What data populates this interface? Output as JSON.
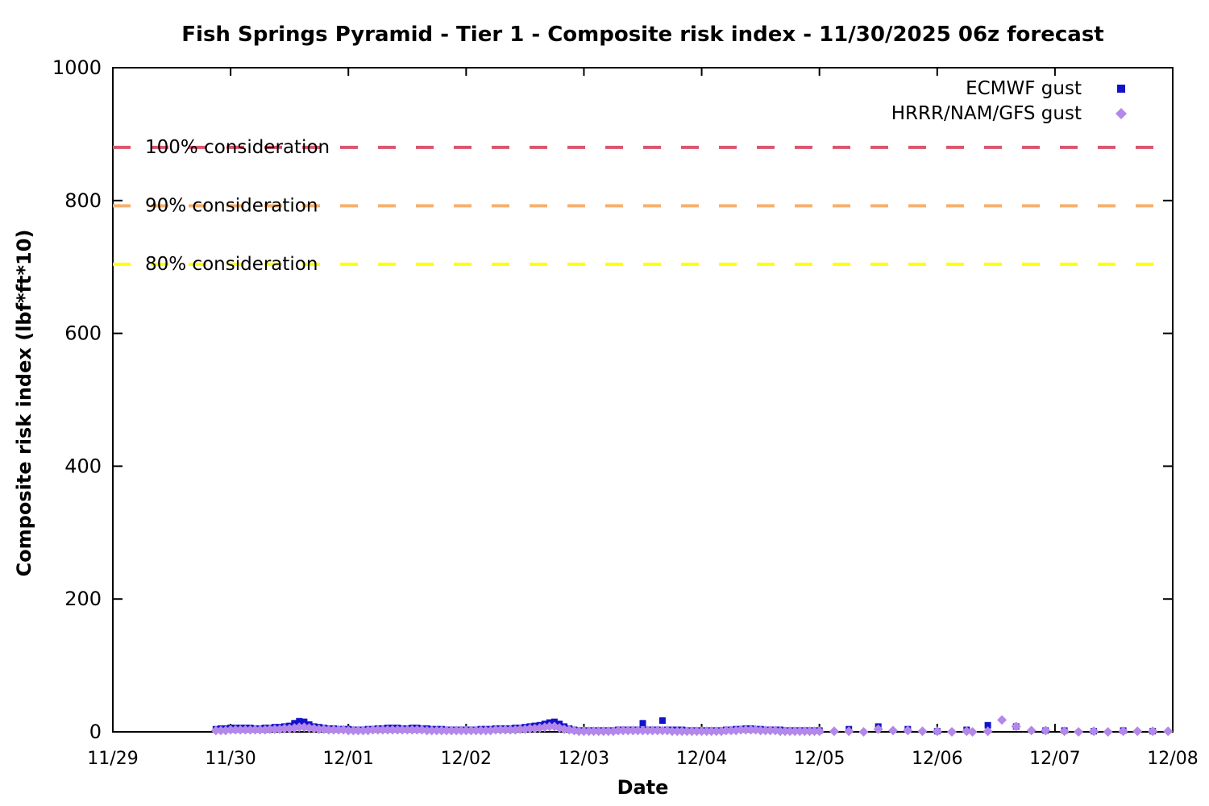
{
  "title": "Fish Springs Pyramid - Tier 1 - Composite risk index - 11/30/2025 06z forecast",
  "chart_data": {
    "type": "scatter",
    "title": "Fish Springs Pyramid - Tier 1 - Composite risk index - 11/30/2025 06z forecast",
    "xlabel": "Date",
    "ylabel": "Composite risk index (lbf*ft*10)",
    "ylim": [
      0,
      1000
    ],
    "yticks": [
      0,
      200,
      400,
      600,
      800,
      1000
    ],
    "x_tick_labels": [
      "11/29",
      "11/30",
      "12/01",
      "12/02",
      "12/03",
      "12/04",
      "12/05",
      "12/06",
      "12/07",
      "12/08"
    ],
    "x_range_days": [
      0,
      9
    ],
    "x_units": "days since 11/29 00z",
    "grid": false,
    "legend_position": "top-right-inside",
    "background": "#ffffff",
    "thresholds": [
      {
        "label": "100% consideration",
        "value": 880,
        "color": "#d9566e",
        "style": "dashed"
      },
      {
        "label": "90% consideration",
        "value": 792,
        "color": "#f7b06e",
        "style": "dashed"
      },
      {
        "label": "80% consideration",
        "value": 704,
        "color": "#ffff00",
        "style": "dashed"
      }
    ],
    "series": [
      {
        "name": "ECMWF gust",
        "marker": "square",
        "color": "#1212cc",
        "points": [
          [
            0.875,
            4
          ],
          [
            0.917,
            5
          ],
          [
            0.958,
            5
          ],
          [
            1.0,
            6
          ],
          [
            1.042,
            6
          ],
          [
            1.083,
            6
          ],
          [
            1.125,
            6
          ],
          [
            1.167,
            6
          ],
          [
            1.208,
            5
          ],
          [
            1.25,
            5
          ],
          [
            1.292,
            6
          ],
          [
            1.333,
            6
          ],
          [
            1.375,
            7
          ],
          [
            1.417,
            7
          ],
          [
            1.458,
            8
          ],
          [
            1.5,
            9
          ],
          [
            1.542,
            13
          ],
          [
            1.583,
            16
          ],
          [
            1.625,
            15
          ],
          [
            1.667,
            11
          ],
          [
            1.708,
            8
          ],
          [
            1.75,
            7
          ],
          [
            1.792,
            6
          ],
          [
            1.833,
            5
          ],
          [
            1.875,
            5
          ],
          [
            1.917,
            4
          ],
          [
            1.958,
            4
          ],
          [
            2.0,
            4
          ],
          [
            2.042,
            3
          ],
          [
            2.083,
            3
          ],
          [
            2.125,
            3
          ],
          [
            2.167,
            4
          ],
          [
            2.208,
            4
          ],
          [
            2.25,
            5
          ],
          [
            2.292,
            5
          ],
          [
            2.333,
            6
          ],
          [
            2.375,
            6
          ],
          [
            2.417,
            6
          ],
          [
            2.458,
            5
          ],
          [
            2.5,
            5
          ],
          [
            2.542,
            6
          ],
          [
            2.583,
            6
          ],
          [
            2.625,
            5
          ],
          [
            2.667,
            5
          ],
          [
            2.708,
            4
          ],
          [
            2.75,
            4
          ],
          [
            2.792,
            4
          ],
          [
            2.833,
            3
          ],
          [
            2.875,
            3
          ],
          [
            2.917,
            3
          ],
          [
            2.958,
            3
          ],
          [
            3.0,
            3
          ],
          [
            3.042,
            3
          ],
          [
            3.083,
            3
          ],
          [
            3.125,
            4
          ],
          [
            3.167,
            4
          ],
          [
            3.208,
            4
          ],
          [
            3.25,
            5
          ],
          [
            3.292,
            5
          ],
          [
            3.333,
            5
          ],
          [
            3.375,
            5
          ],
          [
            3.417,
            6
          ],
          [
            3.458,
            6
          ],
          [
            3.5,
            7
          ],
          [
            3.542,
            8
          ],
          [
            3.583,
            9
          ],
          [
            3.625,
            10
          ],
          [
            3.667,
            12
          ],
          [
            3.708,
            14
          ],
          [
            3.75,
            15
          ],
          [
            3.792,
            12
          ],
          [
            3.833,
            8
          ],
          [
            3.875,
            5
          ],
          [
            3.917,
            3
          ],
          [
            3.958,
            2
          ],
          [
            4.0,
            2
          ],
          [
            4.042,
            2
          ],
          [
            4.083,
            2
          ],
          [
            4.125,
            2
          ],
          [
            4.167,
            2
          ],
          [
            4.208,
            2
          ],
          [
            4.25,
            2
          ],
          [
            4.292,
            3
          ],
          [
            4.333,
            3
          ],
          [
            4.375,
            3
          ],
          [
            4.417,
            3
          ],
          [
            4.458,
            3
          ],
          [
            4.5,
            13
          ],
          [
            4.542,
            3
          ],
          [
            4.583,
            3
          ],
          [
            4.625,
            3
          ],
          [
            4.667,
            17
          ],
          [
            4.708,
            3
          ],
          [
            4.75,
            3
          ],
          [
            4.792,
            3
          ],
          [
            4.833,
            3
          ],
          [
            4.875,
            2
          ],
          [
            4.917,
            2
          ],
          [
            4.958,
            2
          ],
          [
            5.0,
            2
          ],
          [
            5.042,
            2
          ],
          [
            5.083,
            2
          ],
          [
            5.125,
            2
          ],
          [
            5.167,
            2
          ],
          [
            5.208,
            3
          ],
          [
            5.25,
            3
          ],
          [
            5.292,
            4
          ],
          [
            5.333,
            4
          ],
          [
            5.375,
            5
          ],
          [
            5.417,
            5
          ],
          [
            5.458,
            4
          ],
          [
            5.5,
            4
          ],
          [
            5.542,
            3
          ],
          [
            5.583,
            3
          ],
          [
            5.625,
            3
          ],
          [
            5.667,
            3
          ],
          [
            5.708,
            2
          ],
          [
            5.75,
            2
          ],
          [
            5.792,
            2
          ],
          [
            5.833,
            2
          ],
          [
            5.875,
            2
          ],
          [
            5.917,
            2
          ],
          [
            5.958,
            2
          ],
          [
            6.0,
            2
          ],
          [
            6.25,
            4
          ],
          [
            6.5,
            8
          ],
          [
            6.75,
            4
          ],
          [
            7.0,
            1
          ],
          [
            7.25,
            3
          ],
          [
            7.43,
            10
          ],
          [
            7.67,
            8
          ],
          [
            7.92,
            2
          ],
          [
            8.08,
            2
          ],
          [
            8.33,
            1
          ],
          [
            8.58,
            2
          ],
          [
            8.83,
            1
          ]
        ]
      },
      {
        "name": "HRRR/NAM/GFS gust",
        "marker": "diamond",
        "color": "#b388ea",
        "points": [
          [
            0.875,
            2
          ],
          [
            0.917,
            2
          ],
          [
            0.958,
            2
          ],
          [
            1.0,
            3
          ],
          [
            1.042,
            3
          ],
          [
            1.083,
            3
          ],
          [
            1.125,
            3
          ],
          [
            1.167,
            3
          ],
          [
            1.208,
            3
          ],
          [
            1.25,
            3
          ],
          [
            1.292,
            3
          ],
          [
            1.333,
            4
          ],
          [
            1.375,
            4
          ],
          [
            1.417,
            4
          ],
          [
            1.458,
            5
          ],
          [
            1.5,
            5
          ],
          [
            1.542,
            6
          ],
          [
            1.583,
            7
          ],
          [
            1.625,
            7
          ],
          [
            1.667,
            6
          ],
          [
            1.708,
            5
          ],
          [
            1.75,
            4
          ],
          [
            1.792,
            4
          ],
          [
            1.833,
            3
          ],
          [
            1.875,
            3
          ],
          [
            1.917,
            3
          ],
          [
            1.958,
            3
          ],
          [
            2.0,
            2
          ],
          [
            2.042,
            2
          ],
          [
            2.083,
            2
          ],
          [
            2.125,
            2
          ],
          [
            2.167,
            2
          ],
          [
            2.208,
            3
          ],
          [
            2.25,
            3
          ],
          [
            2.292,
            3
          ],
          [
            2.333,
            3
          ],
          [
            2.375,
            3
          ],
          [
            2.417,
            3
          ],
          [
            2.458,
            3
          ],
          [
            2.5,
            3
          ],
          [
            2.542,
            3
          ],
          [
            2.583,
            3
          ],
          [
            2.625,
            3
          ],
          [
            2.667,
            2
          ],
          [
            2.708,
            2
          ],
          [
            2.75,
            2
          ],
          [
            2.792,
            2
          ],
          [
            2.833,
            2
          ],
          [
            2.875,
            2
          ],
          [
            2.917,
            2
          ],
          [
            2.958,
            2
          ],
          [
            3.0,
            2
          ],
          [
            3.042,
            2
          ],
          [
            3.083,
            2
          ],
          [
            3.125,
            2
          ],
          [
            3.167,
            2
          ],
          [
            3.208,
            2
          ],
          [
            3.25,
            3
          ],
          [
            3.292,
            3
          ],
          [
            3.333,
            3
          ],
          [
            3.375,
            3
          ],
          [
            3.417,
            3
          ],
          [
            3.458,
            4
          ],
          [
            3.5,
            4
          ],
          [
            3.542,
            5
          ],
          [
            3.583,
            5
          ],
          [
            3.625,
            6
          ],
          [
            3.667,
            7
          ],
          [
            3.708,
            8
          ],
          [
            3.75,
            8
          ],
          [
            3.792,
            6
          ],
          [
            3.833,
            4
          ],
          [
            3.875,
            3
          ],
          [
            3.917,
            2
          ],
          [
            3.958,
            1
          ],
          [
            4.0,
            1
          ],
          [
            4.042,
            1
          ],
          [
            4.083,
            1
          ],
          [
            4.125,
            1
          ],
          [
            4.167,
            1
          ],
          [
            4.208,
            1
          ],
          [
            4.25,
            1
          ],
          [
            4.292,
            2
          ],
          [
            4.333,
            2
          ],
          [
            4.375,
            2
          ],
          [
            4.417,
            2
          ],
          [
            4.458,
            2
          ],
          [
            4.5,
            2
          ],
          [
            4.542,
            2
          ],
          [
            4.583,
            2
          ],
          [
            4.625,
            2
          ],
          [
            4.667,
            2
          ],
          [
            4.708,
            2
          ],
          [
            4.75,
            1
          ],
          [
            4.792,
            1
          ],
          [
            4.833,
            1
          ],
          [
            4.875,
            1
          ],
          [
            4.917,
            1
          ],
          [
            4.958,
            1
          ],
          [
            5.0,
            1
          ],
          [
            5.042,
            1
          ],
          [
            5.083,
            1
          ],
          [
            5.125,
            1
          ],
          [
            5.167,
            1
          ],
          [
            5.208,
            2
          ],
          [
            5.25,
            2
          ],
          [
            5.292,
            2
          ],
          [
            5.333,
            3
          ],
          [
            5.375,
            3
          ],
          [
            5.417,
            3
          ],
          [
            5.458,
            3
          ],
          [
            5.5,
            2
          ],
          [
            5.542,
            2
          ],
          [
            5.583,
            2
          ],
          [
            5.625,
            2
          ],
          [
            5.667,
            1
          ],
          [
            5.708,
            1
          ],
          [
            5.75,
            1
          ],
          [
            5.792,
            1
          ],
          [
            5.833,
            1
          ],
          [
            5.875,
            1
          ],
          [
            5.917,
            1
          ],
          [
            5.958,
            1
          ],
          [
            6.0,
            1
          ],
          [
            6.125,
            1
          ],
          [
            6.25,
            1
          ],
          [
            6.375,
            0
          ],
          [
            6.5,
            4
          ],
          [
            6.625,
            2
          ],
          [
            6.75,
            2
          ],
          [
            6.875,
            1
          ],
          [
            7.0,
            1
          ],
          [
            7.125,
            0
          ],
          [
            7.25,
            1
          ],
          [
            7.3,
            0
          ],
          [
            7.43,
            1
          ],
          [
            7.55,
            18
          ],
          [
            7.67,
            8
          ],
          [
            7.8,
            2
          ],
          [
            7.92,
            2
          ],
          [
            8.08,
            1
          ],
          [
            8.2,
            0
          ],
          [
            8.33,
            1
          ],
          [
            8.45,
            0
          ],
          [
            8.58,
            1
          ],
          [
            8.7,
            1
          ],
          [
            8.83,
            1
          ],
          [
            8.96,
            1
          ]
        ]
      }
    ]
  }
}
